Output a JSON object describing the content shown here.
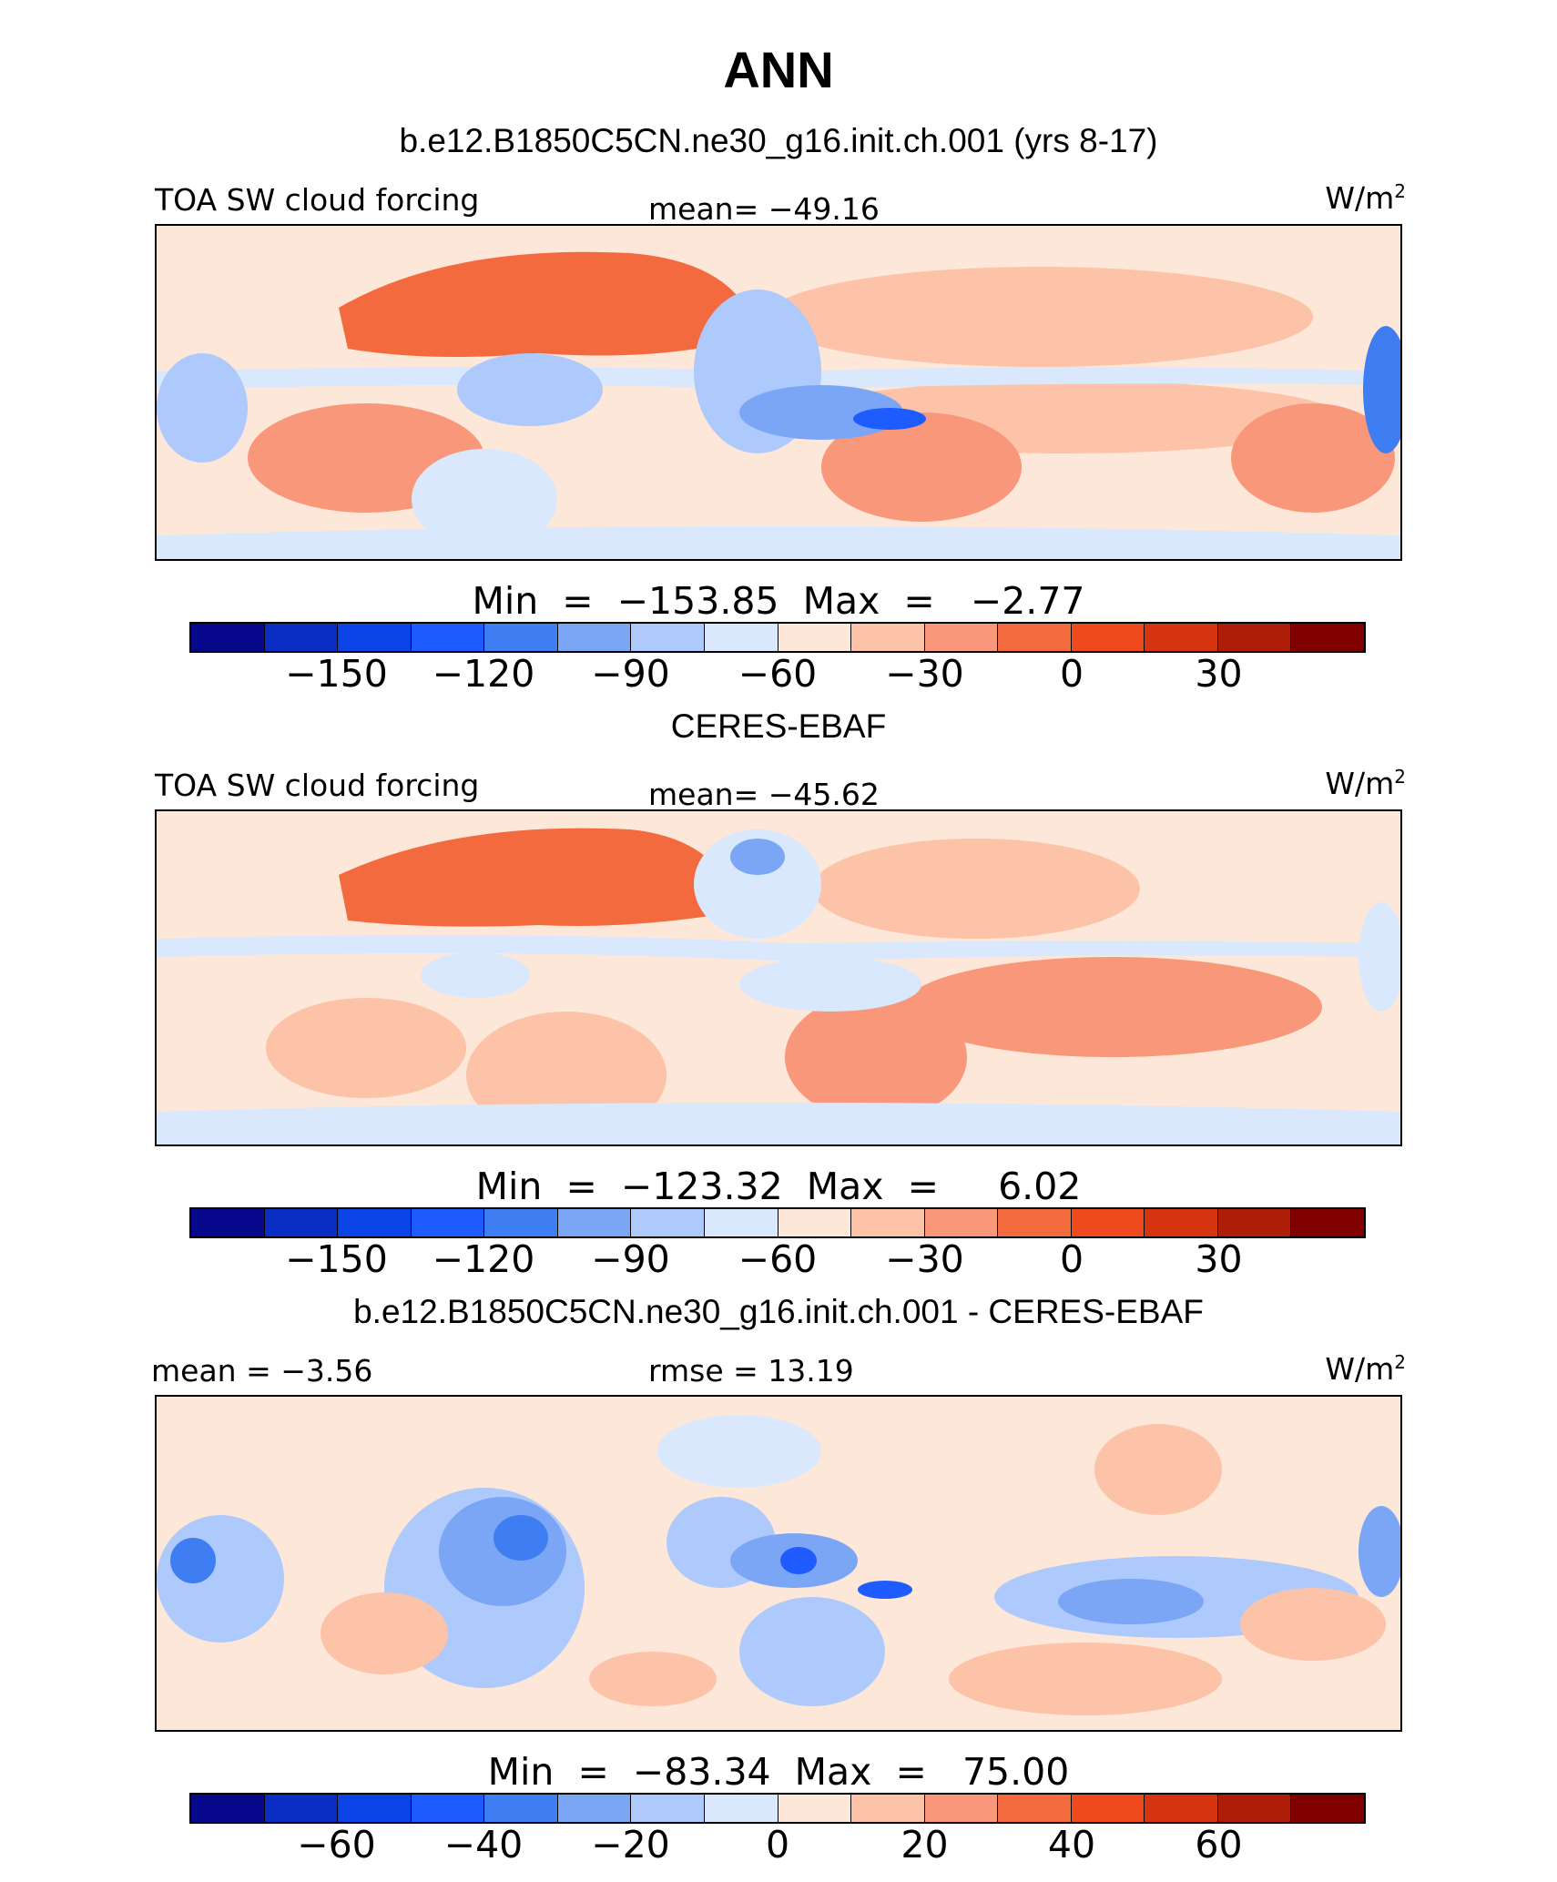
{
  "title": "ANN",
  "colors": [
    "#08088c",
    "#0a2ec4",
    "#0b44e6",
    "#1e5cff",
    "#3f7ef2",
    "#7aa6f5",
    "#aec9fb",
    "#d9e8fc",
    "#fde7d9",
    "#fcc3a8",
    "#f9977a",
    "#f46a3f",
    "#ee4a1e",
    "#d63411",
    "#ad1d08",
    "#800000"
  ],
  "unit_label": "W/m",
  "unit_sup": "2",
  "panels": [
    {
      "heading": "b.e12.B1850C5CN.ne30_g16.init.ch.001 (yrs 8-17)",
      "left_label": "TOA SW cloud forcing",
      "center_label": "mean= −49.16",
      "minmax": "Min  =  −153.85  Max  =   −2.77",
      "ticks": [
        "−150",
        "−120",
        "−90",
        "−60",
        "−30",
        "0",
        "30"
      ]
    },
    {
      "heading": "CERES-EBAF",
      "left_label": "TOA SW cloud forcing",
      "center_label": "mean= −45.62",
      "minmax": "Min  =  −123.32  Max  =     6.02",
      "ticks": [
        "−150",
        "−120",
        "−90",
        "−60",
        "−30",
        "0",
        "30"
      ]
    },
    {
      "heading": "b.e12.B1850C5CN.ne30_g16.init.ch.001 - CERES-EBAF",
      "left_label": "mean  =   −3.56",
      "center_label": "rmse  =   13.19",
      "minmax": "Min  =  −83.34  Max  =   75.00",
      "ticks": [
        "−60",
        "−40",
        "−20",
        "0",
        "20",
        "40",
        "60"
      ]
    }
  ]
}
